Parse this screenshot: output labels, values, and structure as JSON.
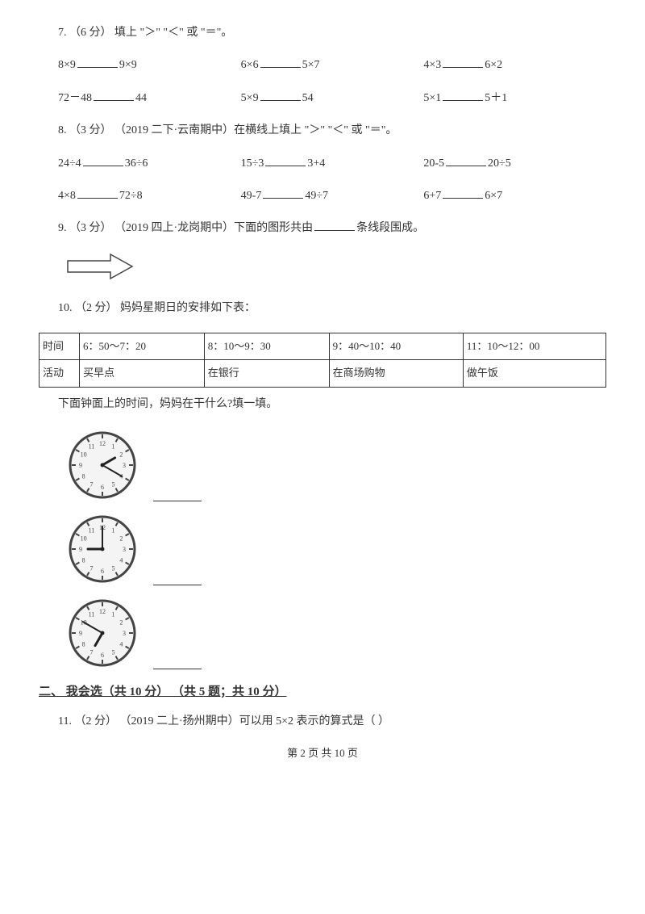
{
  "q7": {
    "prompt": "7.  （6 分）  填上 \"＞\" \"＜\" 或 \"＝\"。",
    "row1": [
      "8×9",
      "9×9",
      "6×6",
      "5×7",
      "4×3",
      "6×2"
    ],
    "row2": [
      "72－48",
      "44",
      "5×9",
      "54",
      "5×1",
      "5＋1"
    ]
  },
  "q8": {
    "prompt": "8.  （3 分） （2019 二下·云南期中）在横线上填上 \"＞\" \"＜\" 或 \"＝\"。",
    "row1": [
      "24÷4",
      "36÷6",
      "15÷3",
      "3+4",
      "20-5",
      "20÷5"
    ],
    "row2": [
      "4×8",
      "72÷8",
      "49-7",
      "49÷7",
      "6+7",
      "6×7"
    ]
  },
  "q9": {
    "prompt_a": "9.  （3 分） （2019 四上·龙岗期中）下面的图形共由",
    "prompt_b": "条线段围成。"
  },
  "q10": {
    "prompt": "10.  （2 分）  妈妈星期日的安排如下表：",
    "table": {
      "headers": [
        "时间",
        "6：50～7：20",
        "8：10～9：30",
        "9：40～10：40",
        "11：10～12：00"
      ],
      "row2": [
        "活动",
        "买早点",
        "在银行",
        "在商场购物",
        "做午饭"
      ]
    },
    "sub": "下面钟面上的时间，妈妈在干什么?填一填。",
    "clocks": [
      {
        "hour_angle": 60,
        "minute_angle": 120
      },
      {
        "hour_angle": 270,
        "minute_angle": 0
      },
      {
        "hour_angle": 210,
        "minute_angle": 300
      }
    ]
  },
  "section2": "二、  我会选（共 10 分） （共 5 题；共 10 分）",
  "q11": {
    "prompt": "11.  （2 分） （2019 二上·扬州期中）可以用 5×2 表示的算式是（      ）"
  },
  "footer": "第 2 页 共 10 页",
  "colors": {
    "text": "#333333",
    "border": "#333333",
    "bg": "#ffffff",
    "clock_fill": "#f4f4f4",
    "clock_stroke": "#444444"
  }
}
